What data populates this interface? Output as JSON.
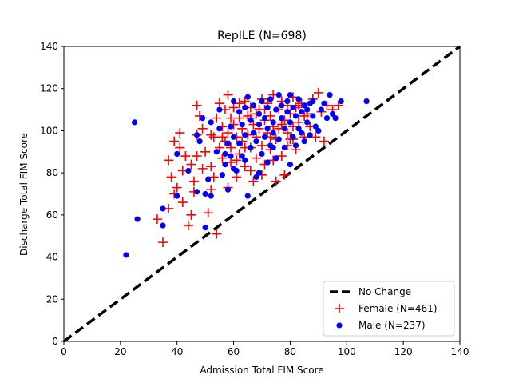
{
  "chart_data": {
    "type": "scatter",
    "title": "RepILE (N=698)",
    "xlabel": "Admission Total FIM Score",
    "ylabel": "Discharge Total FIM Score",
    "xlim": [
      0,
      140
    ],
    "ylim": [
      0,
      140
    ],
    "xticks": [
      "0",
      "20",
      "40",
      "60",
      "80",
      "100",
      "120",
      "140"
    ],
    "yticks": [
      "0",
      "20",
      "40",
      "60",
      "80",
      "100",
      "120",
      "140"
    ],
    "grid": false,
    "legend_position": "lower-right",
    "reference_line": {
      "name": "No Change",
      "x": [
        0,
        140
      ],
      "y": [
        0,
        140
      ],
      "color": "#000000",
      "style": "dashed"
    },
    "series": [
      {
        "name": "Female (N=461)",
        "marker": "plus",
        "color": "#ff0000",
        "points": [
          [
            35,
            47
          ],
          [
            33,
            58
          ],
          [
            37,
            63
          ],
          [
            39,
            70
          ],
          [
            38,
            78
          ],
          [
            40,
            73
          ],
          [
            37,
            86
          ],
          [
            39,
            95
          ],
          [
            41,
            92
          ],
          [
            41,
            99
          ],
          [
            42,
            81
          ],
          [
            43,
            88
          ],
          [
            42,
            66
          ],
          [
            44,
            55
          ],
          [
            45,
            60
          ],
          [
            45,
            84
          ],
          [
            46,
            71
          ],
          [
            46,
            76
          ],
          [
            47,
            88
          ],
          [
            47,
            112
          ],
          [
            48,
            107
          ],
          [
            47,
            98
          ],
          [
            49,
            101
          ],
          [
            50,
            90
          ],
          [
            51,
            61
          ],
          [
            52,
            72
          ],
          [
            52,
            83
          ],
          [
            54,
            51
          ],
          [
            53,
            97
          ],
          [
            54,
            106
          ],
          [
            55,
            92
          ],
          [
            55,
            113
          ],
          [
            56,
            102
          ],
          [
            56,
            87
          ],
          [
            57,
            95
          ],
          [
            57,
            110
          ],
          [
            58,
            117
          ],
          [
            58,
            99
          ],
          [
            59,
            85
          ],
          [
            59,
            92
          ],
          [
            60,
            103
          ],
          [
            60,
            111
          ],
          [
            61,
            78
          ],
          [
            61,
            97
          ],
          [
            62,
            89
          ],
          [
            62,
            106
          ],
          [
            63,
            95
          ],
          [
            63,
            101
          ],
          [
            64,
            114
          ],
          [
            64,
            83
          ],
          [
            65,
            98
          ],
          [
            65,
            107
          ],
          [
            66,
            92
          ],
          [
            66,
            111
          ],
          [
            67,
            76
          ],
          [
            67,
            103
          ],
          [
            68,
            97
          ],
          [
            68,
            87
          ],
          [
            69,
            110
          ],
          [
            69,
            101
          ],
          [
            70,
            93
          ],
          [
            70,
            115
          ],
          [
            71,
            105
          ],
          [
            71,
            84
          ],
          [
            72,
            99
          ],
          [
            72,
            113
          ],
          [
            73,
            107
          ],
          [
            73,
            91
          ],
          [
            74,
            102
          ],
          [
            74,
            117
          ],
          [
            75,
            76
          ],
          [
            75,
            96
          ],
          [
            76,
            110
          ],
          [
            76,
            101
          ],
          [
            77,
            88
          ],
          [
            77,
            114
          ],
          [
            78,
            105
          ],
          [
            78,
            79
          ],
          [
            79,
            99
          ],
          [
            79,
            112
          ],
          [
            80,
            96
          ],
          [
            80,
            108
          ],
          [
            81,
            116
          ],
          [
            81,
            102
          ],
          [
            82,
            91
          ],
          [
            82,
            111
          ],
          [
            83,
            104
          ],
          [
            84,
            113
          ],
          [
            85,
            97
          ],
          [
            86,
            108
          ],
          [
            87,
            102
          ],
          [
            88,
            115
          ],
          [
            89,
            97
          ],
          [
            90,
            118
          ],
          [
            91,
            109
          ],
          [
            92,
            95
          ],
          [
            93,
            112
          ],
          [
            95,
            110
          ],
          [
            97,
            112
          ],
          [
            62,
            113
          ],
          [
            66,
            106
          ],
          [
            71,
            110
          ],
          [
            56,
            97
          ],
          [
            59,
            106
          ],
          [
            64,
            92
          ],
          [
            68,
            108
          ],
          [
            73,
            97
          ],
          [
            77,
            103
          ],
          [
            81,
            96
          ],
          [
            85,
            107
          ],
          [
            52,
            98
          ],
          [
            49,
            82
          ],
          [
            53,
            78
          ],
          [
            58,
            73
          ],
          [
            61,
            86
          ],
          [
            66,
            81
          ],
          [
            70,
            79
          ],
          [
            74,
            86
          ],
          [
            79,
            93
          ],
          [
            83,
            112
          ]
        ]
      },
      {
        "name": "Male (N=237)",
        "marker": "circle",
        "color": "#0000ff",
        "points": [
          [
            22,
            41
          ],
          [
            25,
            104
          ],
          [
            26,
            58
          ],
          [
            35,
            63
          ],
          [
            35,
            55
          ],
          [
            40,
            89
          ],
          [
            40,
            69
          ],
          [
            44,
            81
          ],
          [
            47,
            98
          ],
          [
            47,
            71
          ],
          [
            48,
            95
          ],
          [
            49,
            106
          ],
          [
            50,
            54
          ],
          [
            50,
            70
          ],
          [
            51,
            77
          ],
          [
            52,
            69
          ],
          [
            52,
            104
          ],
          [
            54,
            90
          ],
          [
            55,
            110
          ],
          [
            55,
            101
          ],
          [
            56,
            79
          ],
          [
            57,
            84
          ],
          [
            58,
            72
          ],
          [
            58,
            94
          ],
          [
            59,
            102
          ],
          [
            59,
            88
          ],
          [
            60,
            114
          ],
          [
            60,
            97
          ],
          [
            61,
            81
          ],
          [
            62,
            109
          ],
          [
            62,
            94
          ],
          [
            63,
            103
          ],
          [
            63,
            88
          ],
          [
            64,
            98
          ],
          [
            64,
            111
          ],
          [
            65,
            69
          ],
          [
            65,
            116
          ],
          [
            66,
            92
          ],
          [
            66,
            105
          ],
          [
            67,
            99
          ],
          [
            67,
            112
          ],
          [
            68,
            78
          ],
          [
            68,
            95
          ],
          [
            69,
            103
          ],
          [
            69,
            108
          ],
          [
            70,
            89
          ],
          [
            70,
            114
          ],
          [
            71,
            97
          ],
          [
            71,
            106
          ],
          [
            72,
            101
          ],
          [
            72,
            111
          ],
          [
            73,
            93
          ],
          [
            73,
            115
          ],
          [
            74,
            104
          ],
          [
            74,
            99
          ],
          [
            75,
            110
          ],
          [
            75,
            87
          ],
          [
            76,
            117
          ],
          [
            76,
            96
          ],
          [
            77,
            106
          ],
          [
            77,
            112
          ],
          [
            78,
            92
          ],
          [
            78,
            101
          ],
          [
            79,
            109
          ],
          [
            79,
            114
          ],
          [
            80,
            84
          ],
          [
            80,
            104
          ],
          [
            81,
            97
          ],
          [
            81,
            111
          ],
          [
            82,
            93
          ],
          [
            82,
            107
          ],
          [
            83,
            101
          ],
          [
            83,
            115
          ],
          [
            84,
            99
          ],
          [
            84,
            109
          ],
          [
            85,
            95
          ],
          [
            85,
            112
          ],
          [
            86,
            104
          ],
          [
            86,
            110
          ],
          [
            87,
            98
          ],
          [
            88,
            107
          ],
          [
            88,
            114
          ],
          [
            89,
            102
          ],
          [
            90,
            100
          ],
          [
            91,
            110
          ],
          [
            92,
            113
          ],
          [
            94,
            117
          ],
          [
            95,
            108
          ],
          [
            96,
            106
          ],
          [
            98,
            114
          ],
          [
            107,
            114
          ],
          [
            93,
            106
          ],
          [
            87,
            113
          ],
          [
            80,
            117
          ],
          [
            74,
            92
          ],
          [
            69,
            80
          ],
          [
            64,
            86
          ],
          [
            60,
            82
          ],
          [
            57,
            89
          ],
          [
            72,
            85
          ]
        ]
      }
    ]
  }
}
